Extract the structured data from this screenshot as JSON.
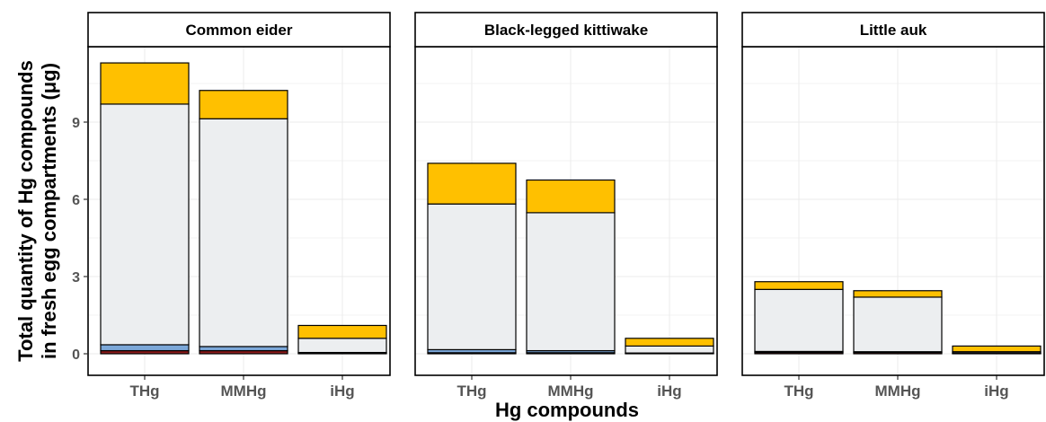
{
  "chart_data": {
    "type": "bar",
    "stacked": true,
    "facets": [
      "Common eider",
      "Black-legged kittiwake",
      "Little auk"
    ],
    "categories": [
      "THg",
      "MMHg",
      "iHg"
    ],
    "xlabel": "Hg compounds",
    "ylabel": [
      "Total quantity of Hg compounds",
      "in fresh egg compartments (μg)"
    ],
    "ylim": [
      0,
      12
    ],
    "yticks": [
      0,
      3,
      6,
      9
    ],
    "grid": true,
    "segment_colors": [
      "#8b1a1a",
      "#7ba7d8",
      "#eceef0",
      "#ffc000"
    ],
    "series": [
      {
        "color": "#8b1a1a",
        "values": [
          [
            0.12,
            0.12,
            0.03
          ],
          [
            0.04,
            0.04,
            0.02
          ],
          [
            0.05,
            0.05,
            0.02
          ]
        ]
      },
      {
        "color": "#7ba7d8",
        "values": [
          [
            0.23,
            0.16,
            0.02
          ],
          [
            0.12,
            0.08,
            0.01
          ],
          [
            0.04,
            0.03,
            0.01
          ]
        ]
      },
      {
        "color": "#eceef0",
        "values": [
          [
            9.35,
            8.85,
            0.55
          ],
          [
            5.66,
            5.36,
            0.27
          ],
          [
            2.41,
            2.12,
            0.05
          ]
        ]
      },
      {
        "color": "#ffc000",
        "values": [
          [
            1.6,
            1.1,
            0.5
          ],
          [
            1.58,
            1.27,
            0.3
          ],
          [
            0.3,
            0.25,
            0.22
          ]
        ]
      }
    ]
  }
}
